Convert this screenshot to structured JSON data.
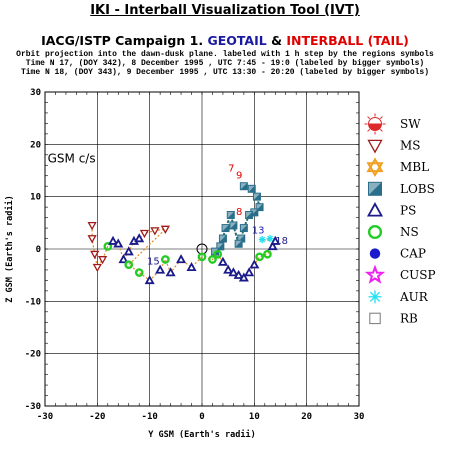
{
  "header": {
    "title": "IKI - Interball Visualization Tool (IVT)",
    "subtitle_part1": "IACG/ISTP Campaign 1.",
    "subtitle_part2": "GEOTAIL",
    "subtitle_part3": " & ",
    "subtitle_part4": "INTERBALL (TAIL)",
    "desc1": "Orbit projection into the dawn-dusk plane. labeled with 1 h step by the regions symbols",
    "desc2": "Time N 17, (DOY 342), 8 December 1995 , UTC 7:45 - 19:0 (labeled by bigger symbols)",
    "desc3": "Time N 18, (DOY 343), 9 December 1995 , UTC 13:30 - 20:20 (labeled by bigger symbols)"
  },
  "colors": {
    "geotail_orbit": "#2a6f6f",
    "interball_orbit": "#8a4a4a",
    "interball_tail_orange": "#e08a20",
    "sw": "#dd2a2a",
    "ms": "#a01a1a",
    "mbl": "#f0a020",
    "lobs": "#2a6f8a",
    "ps": "#1a1a8a",
    "ns": "#22cc22",
    "cap": "#1a1acc",
    "cusp": "#ee22ee",
    "aur": "#22e0f0",
    "rb": "#777777"
  },
  "chart_data": {
    "type": "scatter",
    "label_gsm": "GSM c/s",
    "xlabel": "Y GSM (Earth's radii)",
    "ylabel": "Z GSM (Earth's radii)",
    "xlim": [
      -30,
      30
    ],
    "ylim": [
      -30,
      30
    ],
    "xticks": [
      -30,
      -20,
      -10,
      0,
      10,
      20,
      30
    ],
    "yticks": [
      -30,
      -20,
      -10,
      0,
      10,
      20,
      30
    ],
    "grid": true,
    "legend_position": "right",
    "legend": [
      {
        "key": "sw",
        "label": "SW",
        "icon": "sun-icon"
      },
      {
        "key": "ms",
        "label": "MS",
        "icon": "down-triangle-icon"
      },
      {
        "key": "mbl",
        "label": "MBL",
        "icon": "star-of-david-icon"
      },
      {
        "key": "lobs",
        "label": "LOBS",
        "icon": "split-square-icon"
      },
      {
        "key": "ps",
        "label": "PS",
        "icon": "triangle-icon"
      },
      {
        "key": "ns",
        "label": "NS",
        "icon": "ring-icon"
      },
      {
        "key": "cap",
        "label": "CAP",
        "icon": "filled-circle-icon"
      },
      {
        "key": "cusp",
        "label": "CUSP",
        "icon": "star-icon"
      },
      {
        "key": "aur",
        "label": "AUR",
        "icon": "asterisk-icon"
      },
      {
        "key": "rb",
        "label": "RB",
        "icon": "square-icon"
      }
    ],
    "series": [
      {
        "name": "GEOTAIL",
        "region_points": [
          {
            "y": 8.0,
            "z": 12.0,
            "region": "lobs"
          },
          {
            "y": 9.5,
            "z": 11.5,
            "region": "lobs"
          },
          {
            "y": 10.5,
            "z": 10.0,
            "region": "lobs"
          },
          {
            "y": 11.0,
            "z": 8.0,
            "region": "lobs"
          },
          {
            "y": 10.0,
            "z": 7.0,
            "region": "lobs"
          },
          {
            "y": 9.0,
            "z": 6.5,
            "region": "lobs"
          },
          {
            "y": 8.0,
            "z": 4.0,
            "region": "lobs"
          },
          {
            "y": 7.5,
            "z": 2.0,
            "region": "lobs"
          },
          {
            "y": 7.0,
            "z": 1.0,
            "region": "lobs"
          },
          {
            "y": 6.0,
            "z": 4.5,
            "region": "lobs"
          },
          {
            "y": 5.5,
            "z": 6.5,
            "region": "lobs"
          },
          {
            "y": 4.5,
            "z": 4.0,
            "region": "lobs"
          },
          {
            "y": 4.0,
            "z": 2.0,
            "region": "lobs"
          },
          {
            "y": 3.5,
            "z": 0.5,
            "region": "lobs"
          },
          {
            "y": 2.5,
            "z": -0.5,
            "region": "lobs"
          }
        ],
        "labels": [
          {
            "text": "7",
            "y": 5.0,
            "z": 14.8
          },
          {
            "text": "13",
            "y": 9.5,
            "z": 3.0
          }
        ]
      },
      {
        "name": "INTERBALL (TAIL)",
        "region_points": [
          {
            "y": -21.0,
            "z": 4.5,
            "region": "ms"
          },
          {
            "y": -21.0,
            "z": 2.0,
            "region": "ms"
          },
          {
            "y": -20.5,
            "z": -1.0,
            "region": "ms"
          },
          {
            "y": -20.0,
            "z": -3.5,
            "region": "ms"
          },
          {
            "y": -19.0,
            "z": -2.0,
            "region": "ms"
          },
          {
            "y": -18.0,
            "z": 0.5,
            "region": "ns"
          },
          {
            "y": -17.0,
            "z": 1.5,
            "region": "ps"
          },
          {
            "y": -16.0,
            "z": 1.0,
            "region": "ps"
          },
          {
            "y": -15.0,
            "z": -2.0,
            "region": "ps"
          },
          {
            "y": -14.0,
            "z": -0.5,
            "region": "ps"
          },
          {
            "y": -13.0,
            "z": 1.5,
            "region": "ps"
          },
          {
            "y": -12.0,
            "z": 2.0,
            "region": "ps"
          },
          {
            "y": -11.0,
            "z": 3.0,
            "region": "ms"
          },
          {
            "y": -9.0,
            "z": 3.5,
            "region": "ms"
          },
          {
            "y": -7.0,
            "z": 3.8,
            "region": "ms"
          },
          {
            "y": -14.0,
            "z": -3.0,
            "region": "ns"
          },
          {
            "y": -12.0,
            "z": -4.5,
            "region": "ns"
          },
          {
            "y": -10.0,
            "z": -6.0,
            "region": "ps"
          },
          {
            "y": -8.0,
            "z": -4.0,
            "region": "ps"
          },
          {
            "y": -7.0,
            "z": -2.0,
            "region": "ns"
          },
          {
            "y": -6.0,
            "z": -4.5,
            "region": "ps"
          },
          {
            "y": -4.0,
            "z": -2.0,
            "region": "ps"
          },
          {
            "y": -2.0,
            "z": -3.5,
            "region": "ps"
          },
          {
            "y": 0.0,
            "z": -1.5,
            "region": "ns"
          },
          {
            "y": 2.0,
            "z": -2.0,
            "region": "ns"
          },
          {
            "y": 3.0,
            "z": -1.0,
            "region": "ns"
          },
          {
            "y": 4.0,
            "z": -2.5,
            "region": "ps"
          },
          {
            "y": 5.0,
            "z": -4.0,
            "region": "ps"
          },
          {
            "y": 6.0,
            "z": -4.5,
            "region": "ps"
          },
          {
            "y": 7.0,
            "z": -5.0,
            "region": "ps"
          },
          {
            "y": 8.0,
            "z": -5.5,
            "region": "ps"
          },
          {
            "y": 9.0,
            "z": -4.5,
            "region": "ps"
          },
          {
            "y": 10.0,
            "z": -3.0,
            "region": "ps"
          },
          {
            "y": 11.0,
            "z": -1.5,
            "region": "ns"
          },
          {
            "y": 12.5,
            "z": -1.0,
            "region": "ns"
          },
          {
            "y": 13.5,
            "z": 0.5,
            "region": "ps"
          },
          {
            "y": 14.0,
            "z": 1.5,
            "region": "ps"
          },
          {
            "y": 11.5,
            "z": 1.8,
            "region": "aur"
          },
          {
            "y": 13.0,
            "z": 2.0,
            "region": "aur"
          }
        ],
        "labels": [
          {
            "text": "9",
            "y": 6.5,
            "z": 13.5
          },
          {
            "text": "8",
            "y": 6.5,
            "z": 6.5
          },
          {
            "text": "15",
            "y": -10.5,
            "z": -3.0
          },
          {
            "text": "18",
            "y": 14.0,
            "z": 1.0
          }
        ]
      }
    ]
  }
}
